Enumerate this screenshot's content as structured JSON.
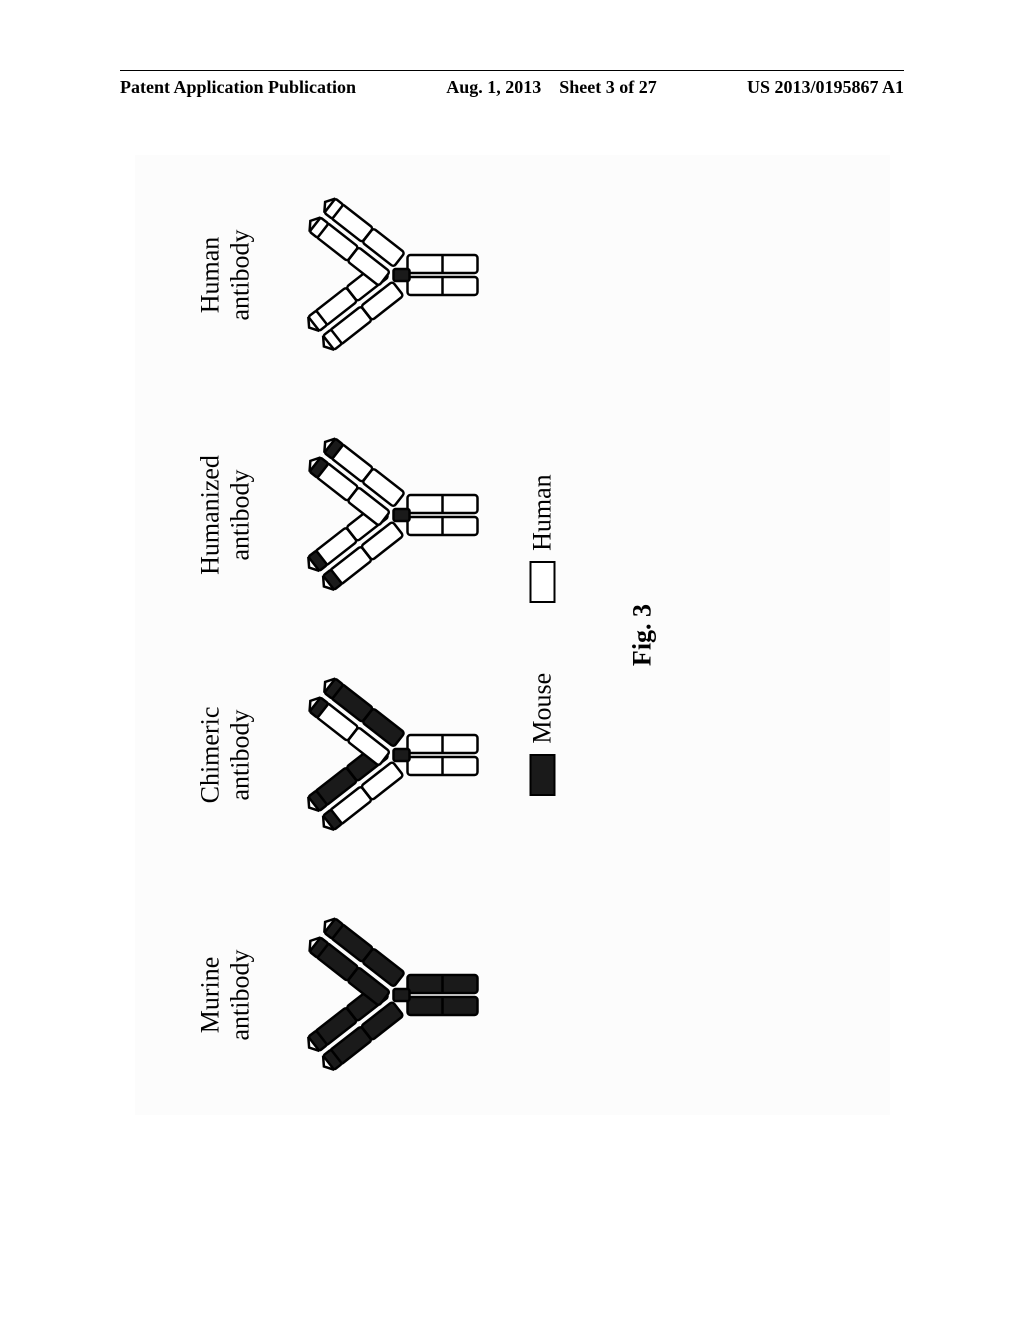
{
  "header": {
    "pub_type": "Patent Application Publication",
    "date": "Aug. 1, 2013",
    "sheet": "Sheet 3 of 27",
    "pub_number": "US 2013/0195867 A1"
  },
  "figure": {
    "caption": "Fig. 3",
    "background_color": "#fcfcfc",
    "antibodies": [
      {
        "title_line1": "Murine",
        "title_line2": "antibody",
        "fc_fill": "#1a1a1a",
        "fab_heavy_fill": "#1a1a1a",
        "fab_light_fill": "#1a1a1a",
        "cdr_fill": "#1a1a1a",
        "hinge_fill": "#1a1a1a"
      },
      {
        "title_line1": "Chimeric",
        "title_line2": "antibody",
        "fc_fill": "#ffffff",
        "fab_heavy_fill": "#ffffff",
        "fab_light_fill": "#1a1a1a",
        "cdr_fill": "#1a1a1a",
        "hinge_fill": "#1a1a1a"
      },
      {
        "title_line1": "Humanized",
        "title_line2": "antibody",
        "fc_fill": "#ffffff",
        "fab_heavy_fill": "#ffffff",
        "fab_light_fill": "#ffffff",
        "cdr_fill": "#1a1a1a",
        "hinge_fill": "#1a1a1a"
      },
      {
        "title_line1": "Human",
        "title_line2": "antibody",
        "fc_fill": "#ffffff",
        "fab_heavy_fill": "#ffffff",
        "fab_light_fill": "#ffffff",
        "cdr_fill": "#ffffff",
        "hinge_fill": "#1a1a1a"
      }
    ],
    "legend": {
      "mouse_label": "Mouse",
      "mouse_fill": "#1a1a1a",
      "human_label": "Human",
      "human_fill": "#ffffff"
    },
    "stroke_color": "#000000",
    "stroke_width": 2.5
  }
}
